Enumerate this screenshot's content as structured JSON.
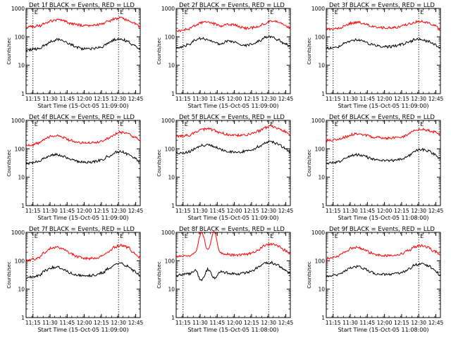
{
  "chart_data": [
    {
      "type": "line",
      "title": "Det 1f BLACK = Events, RED = LLD",
      "xlabel": "Start Time (15-Oct-05 11:09:00)",
      "ylabel": "Counts/sec",
      "yscale": "log",
      "ylim": [
        1,
        1000
      ],
      "xlim_minutes": [
        0,
        100
      ],
      "xticks": [
        "11:15",
        "11:30",
        "11:45",
        "12:00",
        "12:15",
        "12:30",
        "12:45"
      ],
      "markers": [
        {
          "label": "E",
          "time": "11:15"
        },
        {
          "label": "E",
          "time": "12:30"
        }
      ],
      "series": [
        {
          "color": "#ff0000",
          "values": [
            230,
            230,
            240,
            300,
            370,
            390,
            360,
            300,
            270,
            250,
            250,
            260,
            290,
            350,
            430,
            460,
            400,
            300,
            230
          ]
        },
        {
          "color": "#000000",
          "values": [
            35,
            36,
            38,
            50,
            70,
            80,
            72,
            55,
            42,
            38,
            38,
            40,
            45,
            60,
            80,
            85,
            70,
            50,
            35
          ]
        }
      ]
    },
    {
      "type": "line",
      "title": "Det 2f BLACK = Events, RED = LLD",
      "xlabel": "Start Time (15-Oct-05 11:09:00)",
      "ylabel": "Counts/sec",
      "yscale": "log",
      "ylim": [
        1,
        1000
      ],
      "xlim_minutes": [
        0,
        100
      ],
      "xticks": [
        "11:15",
        "11:30",
        "11:45",
        "12:00",
        "12:15",
        "12:30",
        "12:45"
      ],
      "markers": [
        {
          "label": "E",
          "time": "11:15"
        },
        {
          "label": "E",
          "time": "12:30"
        }
      ],
      "series": [
        {
          "color": "#ff0000",
          "values": [
            160,
            170,
            190,
            250,
            310,
            340,
            290,
            240,
            280,
            270,
            220,
            200,
            210,
            240,
            290,
            350,
            340,
            260,
            200
          ]
        },
        {
          "color": "#000000",
          "values": [
            40,
            45,
            55,
            75,
            90,
            80,
            65,
            55,
            70,
            65,
            55,
            50,
            55,
            70,
            95,
            100,
            80,
            60,
            45
          ]
        }
      ]
    },
    {
      "type": "line",
      "title": "Det 3f BLACK = Events, RED = LLD",
      "xlabel": "Start Time (15-Oct-05 11:09:00)",
      "ylabel": "Counts/sec",
      "yscale": "log",
      "ylim": [
        1,
        1000
      ],
      "xlim_minutes": [
        0,
        100
      ],
      "xticks": [
        "11:15",
        "11:30",
        "11:45",
        "12:00",
        "12:15",
        "12:30",
        "12:45"
      ],
      "markers": [
        {
          "label": "E",
          "time": "11:15"
        },
        {
          "label": "E",
          "time": "12:30"
        }
      ],
      "series": [
        {
          "color": "#ff0000",
          "values": [
            180,
            190,
            200,
            250,
            310,
            330,
            290,
            240,
            220,
            210,
            210,
            220,
            240,
            280,
            330,
            360,
            320,
            250,
            180
          ]
        },
        {
          "color": "#000000",
          "values": [
            40,
            42,
            45,
            60,
            75,
            80,
            70,
            55,
            48,
            45,
            45,
            48,
            55,
            65,
            80,
            85,
            70,
            55,
            40
          ]
        }
      ]
    },
    {
      "type": "line",
      "title": "Det 4f BLACK = Events, RED = LLD",
      "xlabel": "Start Time (15-Oct-05 11:09:00)",
      "ylabel": "Counts/sec",
      "yscale": "log",
      "ylim": [
        1,
        1000
      ],
      "xlim_minutes": [
        0,
        100
      ],
      "xticks": [
        "11:15",
        "11:30",
        "11:45",
        "12:00",
        "12:15",
        "12:30",
        "12:45"
      ],
      "markers": [
        {
          "label": "E",
          "time": "11:15"
        },
        {
          "label": "E",
          "time": "12:30"
        }
      ],
      "series": [
        {
          "color": "#ff0000",
          "values": [
            130,
            140,
            160,
            220,
            280,
            290,
            250,
            200,
            170,
            160,
            160,
            170,
            190,
            240,
            330,
            380,
            340,
            260,
            200
          ]
        },
        {
          "color": "#000000",
          "values": [
            30,
            32,
            36,
            48,
            60,
            62,
            52,
            42,
            36,
            34,
            34,
            36,
            42,
            55,
            75,
            80,
            65,
            48,
            35
          ]
        }
      ]
    },
    {
      "type": "line",
      "title": "Det 5f BLACK = Events, RED = LLD",
      "xlabel": "Start Time (15-Oct-05 11:09:00)",
      "ylabel": "Counts/sec",
      "yscale": "log",
      "ylim": [
        1,
        1000
      ],
      "xlim_minutes": [
        0,
        100
      ],
      "xticks": [
        "11:15",
        "11:30",
        "11:45",
        "12:00",
        "12:15",
        "12:30",
        "12:45"
      ],
      "markers": [
        {
          "label": "E",
          "time": "11:15"
        },
        {
          "label": "E",
          "time": "12:30"
        }
      ],
      "series": [
        {
          "color": "#ff0000",
          "values": [
            280,
            285,
            300,
            380,
            470,
            500,
            450,
            370,
            320,
            300,
            300,
            310,
            340,
            420,
            560,
            620,
            540,
            420,
            320
          ]
        },
        {
          "color": "#000000",
          "values": [
            70,
            72,
            78,
            100,
            130,
            140,
            120,
            95,
            82,
            78,
            78,
            82,
            95,
            120,
            165,
            180,
            150,
            110,
            80
          ]
        }
      ]
    },
    {
      "type": "line",
      "title": "Det 6f BLACK = Events, RED = LLD",
      "xlabel": "Start Time (15-Oct-05 11:08:00)",
      "ylabel": "Counts/sec",
      "yscale": "log",
      "ylim": [
        1,
        1000
      ],
      "xlim_minutes": [
        0,
        100
      ],
      "xticks": [
        "11:15",
        "11:30",
        "11:45",
        "12:00",
        "12:15",
        "12:30",
        "12:45"
      ],
      "markers": [
        {
          "label": "E",
          "time": "11:15"
        },
        {
          "label": "E",
          "time": "12:30"
        }
      ],
      "series": [
        {
          "color": "#ff0000",
          "values": [
            200,
            205,
            215,
            260,
            320,
            340,
            310,
            270,
            250,
            240,
            240,
            250,
            270,
            330,
            470,
            480,
            450,
            390,
            320
          ]
        },
        {
          "color": "#000000",
          "values": [
            30,
            32,
            35,
            45,
            58,
            62,
            55,
            46,
            40,
            38,
            38,
            40,
            45,
            58,
            85,
            95,
            85,
            65,
            45
          ]
        }
      ]
    },
    {
      "type": "line",
      "title": "Det 7f BLACK = Events, RED = LLD",
      "xlabel": "Start Time (15-Oct-05 11:09:00)",
      "ylabel": "Counts/sec",
      "yscale": "log",
      "ylim": [
        1,
        1000
      ],
      "xlim_minutes": [
        0,
        100
      ],
      "xticks": [
        "11:15",
        "11:30",
        "11:45",
        "12:00",
        "12:15",
        "12:30",
        "12:45"
      ],
      "markers": [
        {
          "label": "E",
          "time": "11:15"
        },
        {
          "label": "E",
          "time": "12:30"
        }
      ],
      "series": [
        {
          "color": "#ff0000",
          "values": [
            100,
            110,
            130,
            200,
            280,
            300,
            250,
            180,
            140,
            125,
            120,
            125,
            150,
            210,
            310,
            350,
            300,
            200,
            130
          ]
        },
        {
          "color": "#000000",
          "values": [
            25,
            27,
            30,
            45,
            58,
            60,
            50,
            38,
            32,
            30,
            30,
            32,
            38,
            52,
            75,
            80,
            65,
            45,
            30
          ]
        }
      ]
    },
    {
      "type": "line",
      "title": "Det 8f BLACK = Events, RED = LLD",
      "xlabel": "Start Time (15-Oct-05 11:08:00)",
      "ylabel": "Counts/sec",
      "yscale": "log",
      "ylim": [
        1,
        1000
      ],
      "xlim_minutes": [
        0,
        100
      ],
      "xticks": [
        "11:15",
        "11:30",
        "11:45",
        "12:00",
        "12:15",
        "12:30",
        "12:45"
      ],
      "markers": [
        {
          "label": "E",
          "time": "11:15"
        },
        {
          "label": "E",
          "time": "12:30"
        }
      ],
      "series": [
        {
          "color": "#ff0000",
          "values": [
            140,
            145,
            150,
            200,
            1000,
            240,
            1000,
            190,
            170,
            160,
            160,
            170,
            190,
            250,
            350,
            380,
            330,
            240,
            170
          ]
        },
        {
          "color": "#000000",
          "values": [
            30,
            32,
            35,
            45,
            20,
            50,
            25,
            42,
            38,
            35,
            35,
            38,
            45,
            60,
            80,
            85,
            70,
            50,
            35
          ]
        }
      ]
    },
    {
      "type": "line",
      "title": "Det 9f BLACK = Events, RED = LLD",
      "xlabel": "Start Time (15-Oct-05 11:08:00)",
      "ylabel": "Counts/sec",
      "yscale": "log",
      "ylim": [
        1,
        1000
      ],
      "xlim_minutes": [
        0,
        100
      ],
      "xticks": [
        "11:15",
        "11:30",
        "11:45",
        "12:00",
        "12:15",
        "12:30",
        "12:45"
      ],
      "markers": [
        {
          "label": "E",
          "time": "11:15"
        },
        {
          "label": "E",
          "time": "12:30"
        }
      ],
      "series": [
        {
          "color": "#ff0000",
          "values": [
            120,
            130,
            150,
            210,
            280,
            300,
            250,
            190,
            160,
            150,
            150,
            155,
            180,
            230,
            310,
            340,
            300,
            220,
            160
          ]
        },
        {
          "color": "#000000",
          "values": [
            28,
            30,
            33,
            45,
            58,
            62,
            52,
            40,
            35,
            33,
            33,
            35,
            40,
            52,
            72,
            80,
            68,
            48,
            32
          ]
        }
      ]
    }
  ]
}
